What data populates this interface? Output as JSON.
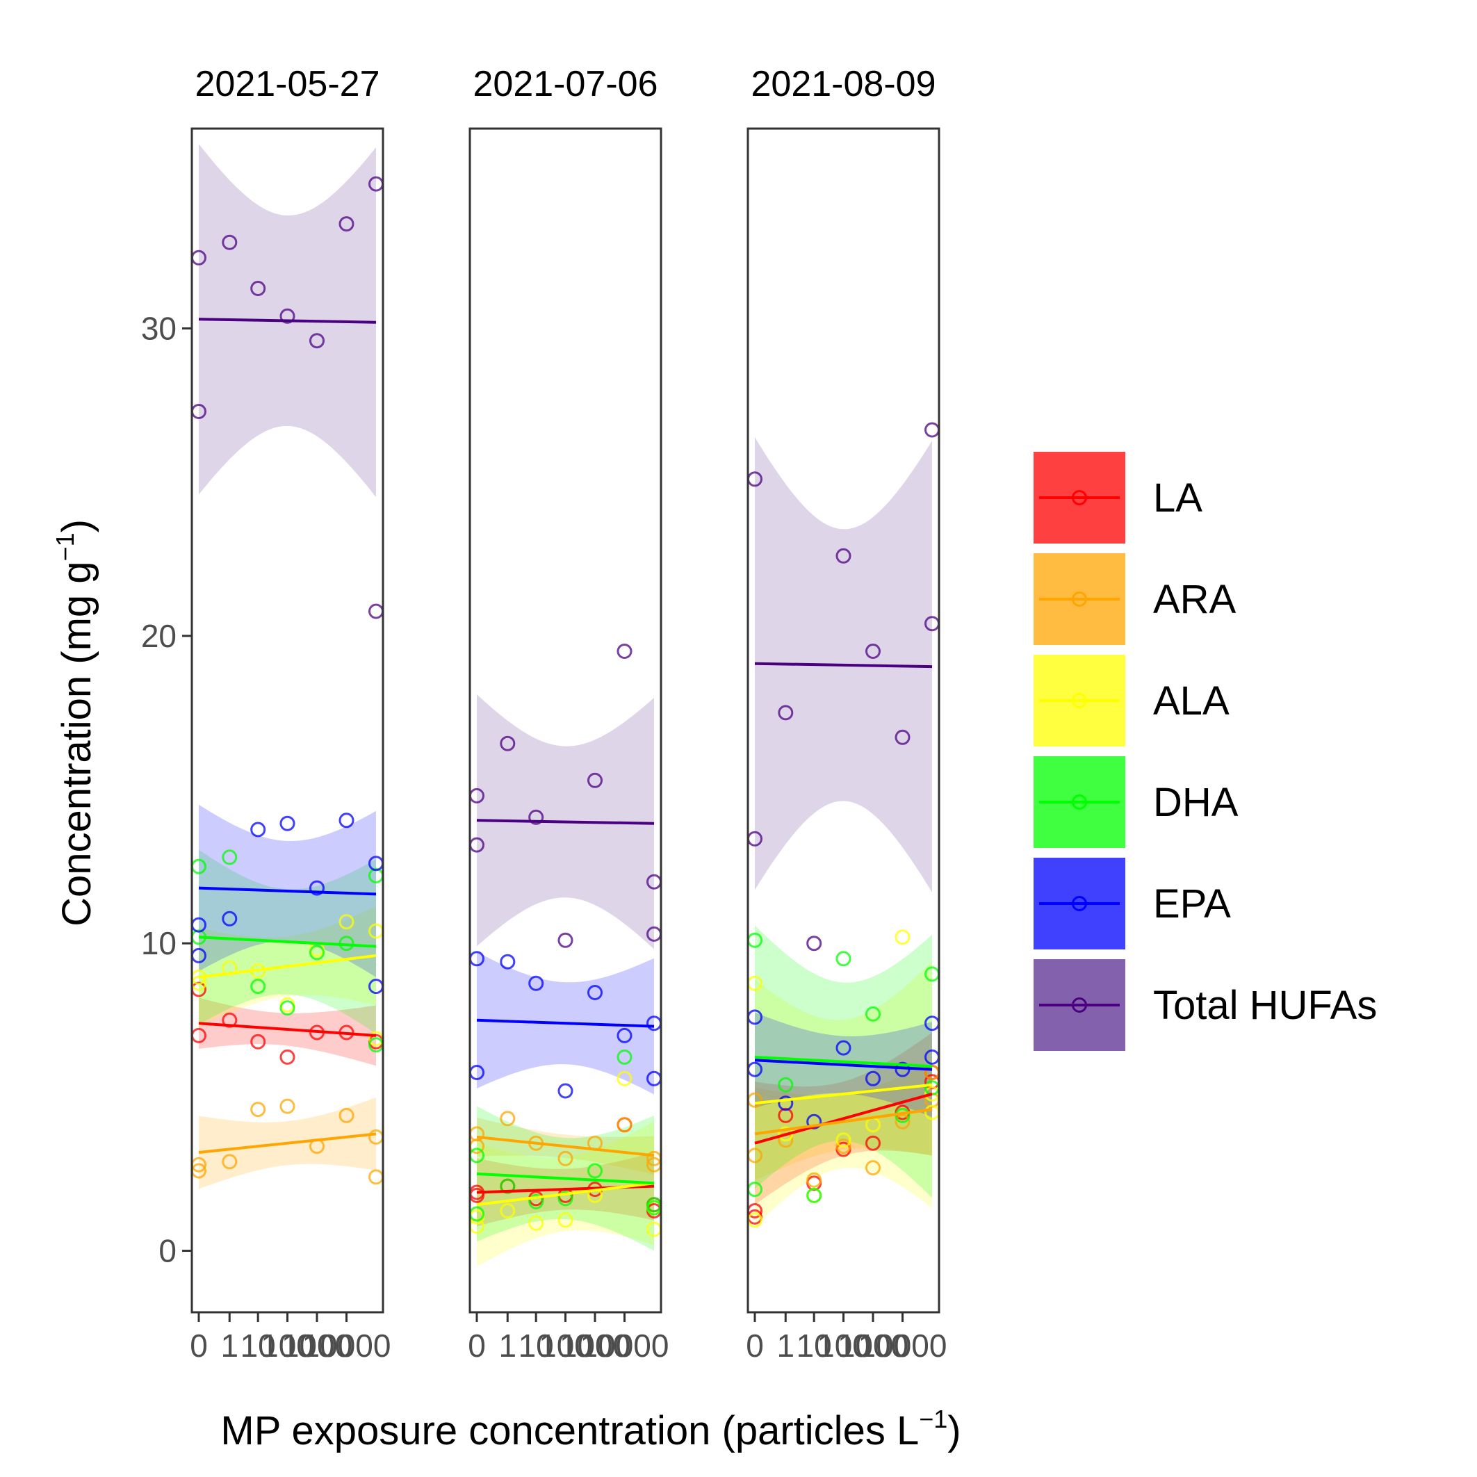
{
  "chart_data": {
    "type": "scatter",
    "facet_labels": [
      "2021-05-27",
      "2021-07-06",
      "2021-08-09"
    ],
    "xlabel_main": "MP exposure concentration (particles L",
    "xlabel_sup": "−1",
    "xlabel_close": ")",
    "ylabel_main": "Concentration (mg  g",
    "ylabel_sup": "−1",
    "ylabel_close": ")",
    "x_tick_labels": [
      "0",
      "1",
      "10",
      "100",
      "1000",
      "10000"
    ],
    "x_tick_values": [
      0,
      1,
      10,
      100,
      1000,
      10000
    ],
    "y_ticks": [
      0,
      10,
      20,
      30
    ],
    "ylim": [
      -2,
      36.5
    ],
    "grid": false,
    "legend_position": "right",
    "series": [
      {
        "name": "LA",
        "color": "#ff0000",
        "fill": "#ff0000",
        "facets": [
          {
            "points": [
              [
                0,
                8.5
              ],
              [
                0,
                7.0
              ],
              [
                1,
                7.5
              ],
              [
                10,
                6.8
              ],
              [
                100,
                6.3
              ],
              [
                1000,
                7.1
              ],
              [
                10000,
                7.1
              ],
              [
                100000,
                6.8
              ]
            ],
            "fit": [
              7.4,
              7.0
            ]
          },
          {
            "points": [
              [
                0,
                1.8
              ],
              [
                0,
                1.9
              ],
              [
                1,
                2.1
              ],
              [
                10,
                1.7
              ],
              [
                100,
                1.8
              ],
              [
                1000,
                2.0
              ],
              [
                10000,
                4.1
              ],
              [
                100000,
                1.3
              ],
              [
                100000,
                1.5
              ]
            ],
            "fit": [
              1.9,
              2.1
            ]
          },
          {
            "points": [
              [
                0,
                1.3
              ],
              [
                0,
                1.1
              ],
              [
                1,
                4.4
              ],
              [
                10,
                2.2
              ],
              [
                100,
                3.3
              ],
              [
                1000,
                3.5
              ],
              [
                10000,
                4.5
              ],
              [
                100000,
                5.8
              ],
              [
                100000,
                5.5
              ]
            ],
            "fit": [
              3.5,
              5.1
            ]
          }
        ]
      },
      {
        "name": "ARA",
        "color": "#ffa500",
        "fill": "#ffa500",
        "facets": [
          {
            "points": [
              [
                0,
                2.8
              ],
              [
                0,
                2.6
              ],
              [
                1,
                2.9
              ],
              [
                10,
                4.6
              ],
              [
                100,
                4.7
              ],
              [
                1000,
                3.4
              ],
              [
                10000,
                4.4
              ],
              [
                100000,
                3.7
              ],
              [
                100000,
                2.4
              ]
            ],
            "fit": [
              3.2,
              3.8
            ]
          },
          {
            "points": [
              [
                0,
                3.8
              ],
              [
                0,
                3.4
              ],
              [
                1,
                4.3
              ],
              [
                10,
                3.5
              ],
              [
                100,
                3.0
              ],
              [
                1000,
                3.5
              ],
              [
                10000,
                4.1
              ],
              [
                100000,
                3.0
              ],
              [
                100000,
                2.8
              ]
            ],
            "fit": [
              3.7,
              3.1
            ]
          },
          {
            "points": [
              [
                0,
                3.1
              ],
              [
                0,
                4.9
              ],
              [
                1,
                3.6
              ],
              [
                10,
                2.3
              ],
              [
                100,
                3.4
              ],
              [
                1000,
                2.7
              ],
              [
                10000,
                4.2
              ],
              [
                100000,
                5.8
              ],
              [
                100000,
                4.9
              ]
            ],
            "fit": [
              3.8,
              4.6
            ]
          }
        ]
      },
      {
        "name": "ALA",
        "color": "#ffff00",
        "fill": "#ffff00",
        "facets": [
          {
            "points": [
              [
                0,
                8.9
              ],
              [
                0,
                8.7
              ],
              [
                1,
                9.2
              ],
              [
                10,
                9.1
              ],
              [
                100,
                8.0
              ],
              [
                1000,
                9.8
              ],
              [
                10000,
                10.7
              ],
              [
                100000,
                10.4
              ],
              [
                100000,
                6.9
              ]
            ],
            "fit": [
              8.9,
              9.6
            ]
          },
          {
            "points": [
              [
                0,
                0.8
              ],
              [
                0,
                1.1
              ],
              [
                1,
                1.3
              ],
              [
                10,
                0.9
              ],
              [
                100,
                1.0
              ],
              [
                1000,
                1.8
              ],
              [
                10000,
                5.6
              ],
              [
                100000,
                0.7
              ],
              [
                100000,
                1.4
              ]
            ],
            "fit": [
              1.5,
              2.2
            ]
          },
          {
            "points": [
              [
                0,
                8.7
              ],
              [
                0,
                1.0
              ],
              [
                1,
                3.8
              ],
              [
                10,
                1.8
              ],
              [
                100,
                3.6
              ],
              [
                1000,
                4.1
              ],
              [
                10000,
                10.2
              ],
              [
                100000,
                4.5
              ],
              [
                100000,
                5.1
              ]
            ],
            "fit": [
              4.8,
              5.4
            ]
          }
        ]
      },
      {
        "name": "DHA",
        "color": "#00ff00",
        "fill": "#00ff00",
        "facets": [
          {
            "points": [
              [
                0,
                12.5
              ],
              [
                0,
                10.2
              ],
              [
                1,
                12.8
              ],
              [
                10,
                8.6
              ],
              [
                100,
                7.9
              ],
              [
                1000,
                9.7
              ],
              [
                10000,
                10.0
              ],
              [
                100000,
                12.2
              ],
              [
                100000,
                6.7
              ]
            ],
            "fit": [
              10.2,
              9.9
            ]
          },
          {
            "points": [
              [
                0,
                3.1
              ],
              [
                0,
                1.2
              ],
              [
                1,
                2.1
              ],
              [
                10,
                1.6
              ],
              [
                100,
                1.7
              ],
              [
                1000,
                2.6
              ],
              [
                10000,
                6.3
              ],
              [
                100000,
                1.4
              ],
              [
                100000,
                1.5
              ]
            ],
            "fit": [
              2.5,
              2.2
            ]
          },
          {
            "points": [
              [
                0,
                10.1
              ],
              [
                0,
                2.0
              ],
              [
                1,
                5.4
              ],
              [
                10,
                1.8
              ],
              [
                100,
                9.5
              ],
              [
                1000,
                7.7
              ],
              [
                10000,
                4.4
              ],
              [
                100000,
                9.0
              ],
              [
                100000,
                5.3
              ]
            ],
            "fit": [
              6.3,
              6.0
            ]
          }
        ]
      },
      {
        "name": "EPA",
        "color": "#0000ff",
        "fill": "#0000ff",
        "facets": [
          {
            "points": [
              [
                0,
                10.6
              ],
              [
                0,
                9.6
              ],
              [
                1,
                10.8
              ],
              [
                10,
                13.7
              ],
              [
                100,
                13.9
              ],
              [
                1000,
                11.8
              ],
              [
                10000,
                14.0
              ],
              [
                100000,
                12.6
              ],
              [
                100000,
                8.6
              ]
            ],
            "fit": [
              11.8,
              11.6
            ]
          },
          {
            "points": [
              [
                0,
                9.5
              ],
              [
                0,
                5.8
              ],
              [
                1,
                9.4
              ],
              [
                10,
                8.7
              ],
              [
                100,
                5.2
              ],
              [
                1000,
                8.4
              ],
              [
                10000,
                7.0
              ],
              [
                100000,
                7.4
              ],
              [
                100000,
                5.6
              ]
            ],
            "fit": [
              7.5,
              7.3
            ]
          },
          {
            "points": [
              [
                0,
                7.6
              ],
              [
                0,
                5.9
              ],
              [
                1,
                4.8
              ],
              [
                10,
                4.2
              ],
              [
                100,
                6.6
              ],
              [
                1000,
                5.6
              ],
              [
                10000,
                5.9
              ],
              [
                100000,
                7.4
              ],
              [
                100000,
                6.3
              ]
            ],
            "fit": [
              6.2,
              5.9
            ]
          }
        ]
      },
      {
        "name": "Total HUFAs",
        "color": "#4b0082",
        "fill": "#5b2c91",
        "facets": [
          {
            "points": [
              [
                0,
                32.3
              ],
              [
                0,
                27.3
              ],
              [
                1,
                32.8
              ],
              [
                10,
                31.3
              ],
              [
                100,
                30.4
              ],
              [
                1000,
                29.6
              ],
              [
                10000,
                33.4
              ],
              [
                100000,
                34.7
              ],
              [
                100000,
                20.8
              ]
            ],
            "fit": [
              30.3,
              30.2
            ]
          },
          {
            "points": [
              [
                0,
                14.8
              ],
              [
                0,
                13.2
              ],
              [
                1,
                16.5
              ],
              [
                10,
                14.1
              ],
              [
                100,
                10.1
              ],
              [
                1000,
                15.3
              ],
              [
                10000,
                19.5
              ],
              [
                100000,
                12.0
              ],
              [
                100000,
                10.3
              ]
            ],
            "fit": [
              14.0,
              13.9
            ]
          },
          {
            "points": [
              [
                0,
                25.1
              ],
              [
                0,
                13.4
              ],
              [
                1,
                17.5
              ],
              [
                10,
                10.0
              ],
              [
                100,
                22.6
              ],
              [
                1000,
                19.5
              ],
              [
                10000,
                16.7
              ],
              [
                100000,
                26.7
              ],
              [
                100000,
                20.4
              ]
            ],
            "fit": [
              19.1,
              19.0
            ]
          }
        ]
      }
    ]
  }
}
